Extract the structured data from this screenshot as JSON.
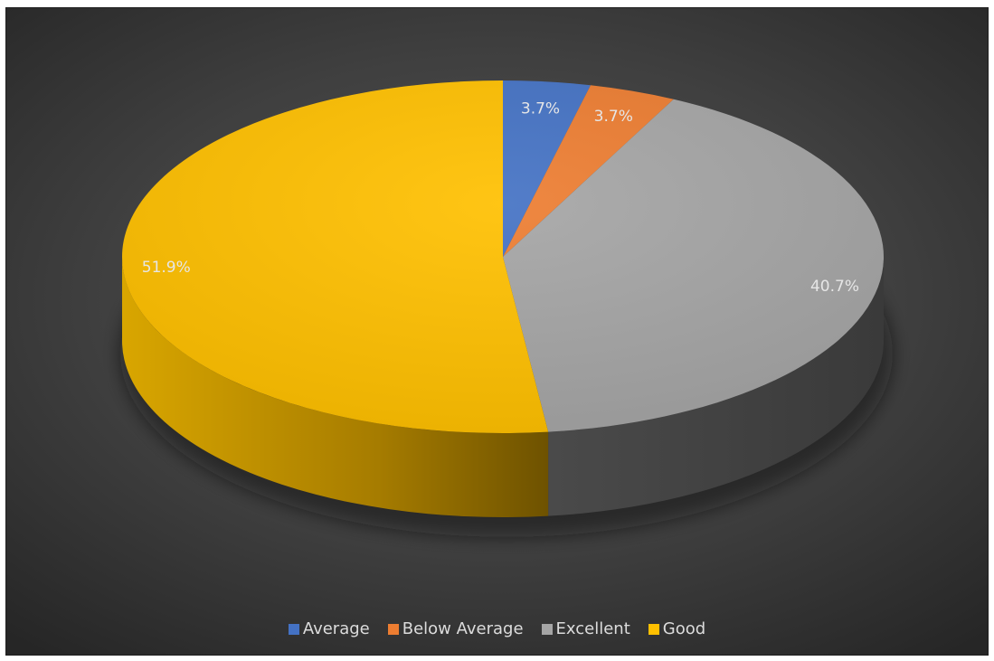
{
  "chart_data": {
    "type": "pie",
    "variant": "3d",
    "categories": [
      "Average",
      "Below Average",
      "Excellent",
      "Good"
    ],
    "values": [
      3.7,
      3.7,
      40.7,
      51.9
    ],
    "data_labels": [
      "3.7%",
      "3.7%",
      "40.7%",
      "51.9%"
    ],
    "colors": [
      "#4472C4",
      "#ED7D31",
      "#A5A5A5",
      "#FFC000"
    ],
    "legend": {
      "placement": "bottom",
      "entries": [
        {
          "label": "Average",
          "color": "#4472C4"
        },
        {
          "label": "Below Average",
          "color": "#ED7D31"
        },
        {
          "label": "Excellent",
          "color": "#A5A5A5"
        },
        {
          "label": "Good",
          "color": "#FFC000"
        }
      ]
    },
    "background": "#404040"
  }
}
